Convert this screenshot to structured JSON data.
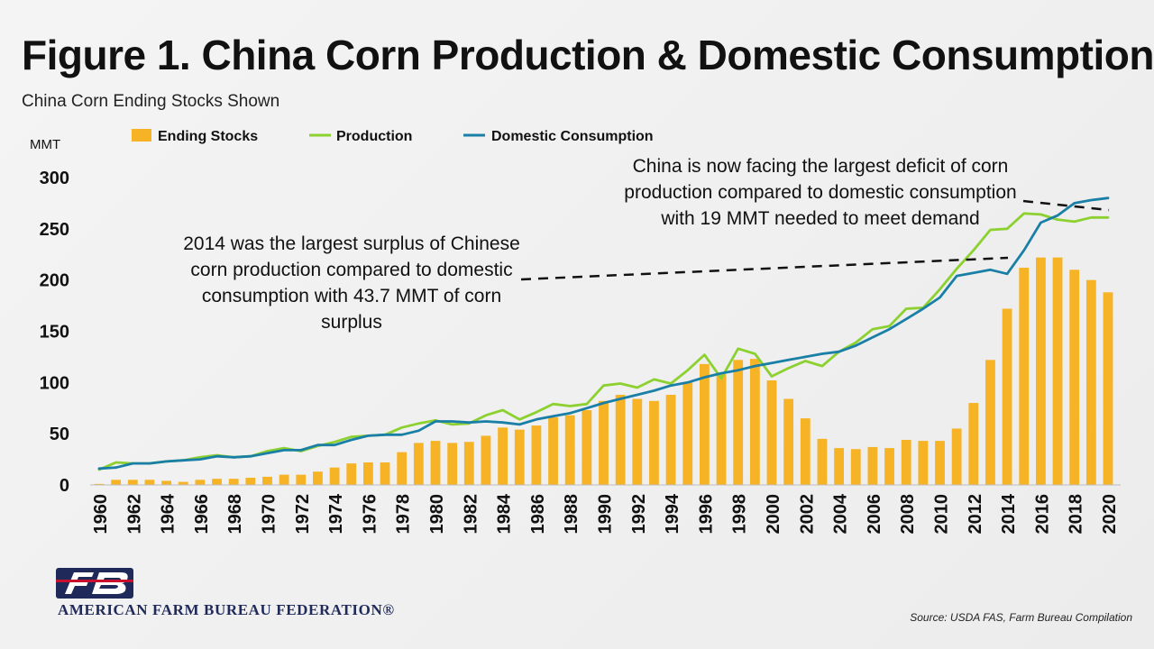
{
  "title": "Figure 1. China Corn Production & Domestic Consumption",
  "subtitle": "China Corn Ending Stocks Shown",
  "annotations": {
    "left": "2014 was the largest surplus of Chinese corn production compared to domestic consumption with 43.7 MMT of corn surplus",
    "right": "China is now facing the largest deficit of corn production compared to domestic consumption with 19 MMT needed to meet demand"
  },
  "source": "Source: USDA FAS, Farm Bureau Compilation",
  "org": "AMERICAN FARM BUREAU FEDERATION®",
  "colors": {
    "stocks": "#F5B325",
    "production": "#8CD130",
    "consumption": "#1A7FA6"
  },
  "chart_data": {
    "type": "bar",
    "ylabel": "MMT",
    "ylim": [
      0,
      300
    ],
    "yticks": [
      0,
      50,
      100,
      150,
      200,
      250,
      300
    ],
    "xtick_labels": [
      "1960",
      "1962",
      "1964",
      "1966",
      "1968",
      "1970",
      "1972",
      "1974",
      "1976",
      "1978",
      "1980",
      "1982",
      "1984",
      "1986",
      "1988",
      "1990",
      "1992",
      "1994",
      "1996",
      "1998",
      "2000",
      "2002",
      "2004",
      "2006",
      "2008",
      "2010",
      "2012",
      "2014",
      "2016",
      "2018",
      "2020"
    ],
    "grid": false,
    "legend_position": "top",
    "x": [
      1960,
      1961,
      1962,
      1963,
      1964,
      1965,
      1966,
      1967,
      1968,
      1969,
      1970,
      1971,
      1972,
      1973,
      1974,
      1975,
      1976,
      1977,
      1978,
      1979,
      1980,
      1981,
      1982,
      1983,
      1984,
      1985,
      1986,
      1987,
      1988,
      1989,
      1990,
      1991,
      1992,
      1993,
      1994,
      1995,
      1996,
      1997,
      1998,
      1999,
      2000,
      2001,
      2002,
      2003,
      2004,
      2005,
      2006,
      2007,
      2008,
      2009,
      2010,
      2011,
      2012,
      2013,
      2014,
      2015,
      2016,
      2017,
      2018,
      2019,
      2020
    ],
    "series": [
      {
        "name": "Ending Stocks",
        "type": "bar",
        "values": [
          1,
          5,
          5,
          5,
          4,
          3,
          5,
          6,
          6,
          7,
          8,
          10,
          10,
          13,
          17,
          21,
          22,
          22,
          32,
          41,
          43,
          41,
          42,
          48,
          56,
          54,
          58,
          66,
          68,
          73,
          82,
          88,
          84,
          82,
          88,
          100,
          118,
          108,
          122,
          123,
          102,
          84,
          65,
          45,
          36,
          35,
          37,
          36,
          44,
          43,
          43,
          55,
          80,
          122,
          172,
          212,
          222,
          222,
          210,
          200,
          188
        ]
      },
      {
        "name": "Production",
        "type": "line",
        "values": [
          15,
          22,
          21,
          21,
          23,
          24,
          27,
          29,
          27,
          28,
          33,
          36,
          33,
          38,
          42,
          47,
          48,
          49,
          56,
          60,
          63,
          59,
          60,
          68,
          73,
          64,
          71,
          79,
          77,
          79,
          97,
          99,
          95,
          103,
          99,
          112,
          127,
          104,
          133,
          128,
          106,
          114,
          121,
          116,
          130,
          139,
          152,
          155,
          172,
          173,
          191,
          211,
          229,
          249,
          250,
          265,
          264,
          259,
          257,
          261,
          261
        ]
      },
      {
        "name": "Domestic Consumption",
        "type": "line",
        "values": [
          16,
          17,
          21,
          21,
          23,
          24,
          25,
          28,
          27,
          28,
          31,
          34,
          34,
          39,
          39,
          44,
          48,
          49,
          49,
          53,
          62,
          62,
          61,
          62,
          61,
          59,
          64,
          67,
          70,
          75,
          80,
          84,
          88,
          92,
          97,
          100,
          105,
          109,
          112,
          116,
          119,
          122,
          125,
          128,
          130,
          136,
          144,
          152,
          162,
          172,
          183,
          204,
          207,
          210,
          206,
          229,
          256,
          263,
          275,
          278,
          280
        ]
      }
    ]
  }
}
